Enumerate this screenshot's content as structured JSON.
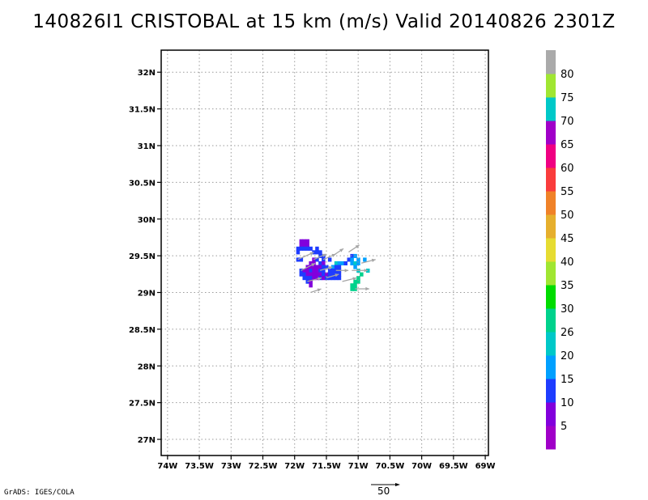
{
  "title": "140826I1 CRISTOBAL at 15 km (m/s) Valid 20140826 2301Z",
  "credit": "GrADS: IGES/COLA",
  "reference_vector_label": "50",
  "chart_data": {
    "type": "heatmap",
    "title": "140826I1 CRISTOBAL at 15 km (m/s) Valid 20140826 2301Z",
    "xlabel": "",
    "ylabel": "",
    "xlim": [
      -74.1,
      -68.95
    ],
    "ylim": [
      26.78,
      32.3
    ],
    "grid": true,
    "x_ticks": [
      {
        "value": -74.0,
        "label": "74W"
      },
      {
        "value": -73.5,
        "label": "73.5W"
      },
      {
        "value": -73.0,
        "label": "73W"
      },
      {
        "value": -72.5,
        "label": "72.5W"
      },
      {
        "value": -72.0,
        "label": "72W"
      },
      {
        "value": -71.5,
        "label": "71.5W"
      },
      {
        "value": -71.0,
        "label": "71W"
      },
      {
        "value": -70.5,
        "label": "70.5W"
      },
      {
        "value": -70.0,
        "label": "70W"
      },
      {
        "value": -69.5,
        "label": "69.5W"
      },
      {
        "value": -69.0,
        "label": "69W"
      }
    ],
    "y_ticks": [
      {
        "value": 27.0,
        "label": "27N"
      },
      {
        "value": 27.5,
        "label": "27.5N"
      },
      {
        "value": 28.0,
        "label": "28N"
      },
      {
        "value": 28.5,
        "label": "28.5N"
      },
      {
        "value": 29.0,
        "label": "29N"
      },
      {
        "value": 29.5,
        "label": "29.5N"
      },
      {
        "value": 30.0,
        "label": "30N"
      },
      {
        "value": 30.5,
        "label": "30.5N"
      },
      {
        "value": 31.0,
        "label": "31N"
      },
      {
        "value": 31.5,
        "label": "31.5N"
      },
      {
        "value": 32.0,
        "label": "32N"
      }
    ],
    "colorbar": {
      "labels": [
        "5",
        "10",
        "15",
        "20",
        "26",
        "30",
        "35",
        "40",
        "45",
        "50",
        "55",
        "60",
        "65",
        "70",
        "75",
        "80"
      ],
      "colors": [
        "#a000c8",
        "#8200dc",
        "#1e3cff",
        "#00a0ff",
        "#00c8c8",
        "#00d28c",
        "#00dc00",
        "#a0e632",
        "#e6dc32",
        "#e6af2d",
        "#f08228",
        "#fa3c3c",
        "#f00082",
        "#a000c8",
        "#00c8c8",
        "#a0e632",
        "#aaaaaa"
      ]
    },
    "cells": [
      {
        "lon": -71.9,
        "lat": 29.7,
        "speed": 5
      },
      {
        "lon": -71.85,
        "lat": 29.7,
        "speed": 5
      },
      {
        "lon": -71.8,
        "lat": 29.7,
        "speed": 5
      },
      {
        "lon": -71.9,
        "lat": 29.65,
        "speed": 5
      },
      {
        "lon": -71.85,
        "lat": 29.65,
        "speed": 5
      },
      {
        "lon": -71.8,
        "lat": 29.65,
        "speed": 5
      },
      {
        "lon": -71.95,
        "lat": 29.6,
        "speed": 10
      },
      {
        "lon": -71.9,
        "lat": 29.6,
        "speed": 10
      },
      {
        "lon": -71.85,
        "lat": 29.6,
        "speed": 10
      },
      {
        "lon": -71.8,
        "lat": 29.6,
        "speed": 10
      },
      {
        "lon": -71.75,
        "lat": 29.6,
        "speed": 10
      },
      {
        "lon": -71.65,
        "lat": 29.6,
        "speed": 10
      },
      {
        "lon": -71.95,
        "lat": 29.55,
        "speed": 10
      },
      {
        "lon": -71.7,
        "lat": 29.55,
        "speed": 10
      },
      {
        "lon": -71.65,
        "lat": 29.55,
        "speed": 10
      },
      {
        "lon": -71.6,
        "lat": 29.55,
        "speed": 10
      },
      {
        "lon": -71.6,
        "lat": 29.5,
        "speed": 10
      },
      {
        "lon": -71.55,
        "lat": 29.5,
        "speed": 10
      },
      {
        "lon": -71.1,
        "lat": 29.5,
        "speed": 10
      },
      {
        "lon": -71.05,
        "lat": 29.5,
        "speed": 15
      },
      {
        "lon": -70.9,
        "lat": 29.45,
        "speed": 15
      },
      {
        "lon": -71.95,
        "lat": 29.45,
        "speed": 10
      },
      {
        "lon": -71.9,
        "lat": 29.45,
        "speed": 10
      },
      {
        "lon": -71.7,
        "lat": 29.45,
        "speed": 5
      },
      {
        "lon": -71.65,
        "lat": 29.45,
        "speed": 10
      },
      {
        "lon": -71.55,
        "lat": 29.45,
        "speed": 10
      },
      {
        "lon": -71.45,
        "lat": 29.45,
        "speed": 10
      },
      {
        "lon": -71.15,
        "lat": 29.45,
        "speed": 10
      },
      {
        "lon": -71.1,
        "lat": 29.45,
        "speed": 15
      },
      {
        "lon": -71.0,
        "lat": 29.45,
        "speed": 15
      },
      {
        "lon": -71.75,
        "lat": 29.4,
        "speed": 5
      },
      {
        "lon": -71.7,
        "lat": 29.4,
        "speed": 5
      },
      {
        "lon": -71.6,
        "lat": 29.4,
        "speed": 10
      },
      {
        "lon": -71.55,
        "lat": 29.4,
        "speed": 5
      },
      {
        "lon": -71.35,
        "lat": 29.4,
        "speed": 20
      },
      {
        "lon": -71.3,
        "lat": 29.4,
        "speed": 15
      },
      {
        "lon": -71.25,
        "lat": 29.4,
        "speed": 15
      },
      {
        "lon": -71.2,
        "lat": 29.4,
        "speed": 10
      },
      {
        "lon": -71.1,
        "lat": 29.4,
        "speed": 15
      },
      {
        "lon": -71.05,
        "lat": 29.4,
        "speed": 20
      },
      {
        "lon": -71.0,
        "lat": 29.4,
        "speed": 15
      },
      {
        "lon": -71.8,
        "lat": 29.35,
        "speed": 5
      },
      {
        "lon": -71.75,
        "lat": 29.35,
        "speed": 5
      },
      {
        "lon": -71.7,
        "lat": 29.35,
        "speed": 5
      },
      {
        "lon": -71.65,
        "lat": 29.35,
        "speed": 5
      },
      {
        "lon": -71.6,
        "lat": 29.35,
        "speed": 5
      },
      {
        "lon": -71.55,
        "lat": 29.35,
        "speed": 10
      },
      {
        "lon": -71.5,
        "lat": 29.35,
        "speed": 10
      },
      {
        "lon": -71.4,
        "lat": 29.35,
        "speed": 15
      },
      {
        "lon": -71.35,
        "lat": 29.35,
        "speed": 10
      },
      {
        "lon": -71.3,
        "lat": 29.35,
        "speed": 10
      },
      {
        "lon": -71.05,
        "lat": 29.35,
        "speed": 15
      },
      {
        "lon": -71.9,
        "lat": 29.3,
        "speed": 10
      },
      {
        "lon": -71.85,
        "lat": 29.3,
        "speed": 5
      },
      {
        "lon": -71.8,
        "lat": 29.3,
        "speed": 5
      },
      {
        "lon": -71.75,
        "lat": 29.3,
        "speed": 10
      },
      {
        "lon": -71.7,
        "lat": 29.3,
        "speed": 5
      },
      {
        "lon": -71.65,
        "lat": 29.3,
        "speed": 5
      },
      {
        "lon": -71.6,
        "lat": 29.3,
        "speed": 10
      },
      {
        "lon": -71.55,
        "lat": 29.3,
        "speed": 10
      },
      {
        "lon": -71.45,
        "lat": 29.3,
        "speed": 10
      },
      {
        "lon": -71.4,
        "lat": 29.3,
        "speed": 10
      },
      {
        "lon": -71.35,
        "lat": 29.3,
        "speed": 10
      },
      {
        "lon": -71.3,
        "lat": 29.3,
        "speed": 10
      },
      {
        "lon": -71.0,
        "lat": 29.3,
        "speed": 20
      },
      {
        "lon": -70.85,
        "lat": 29.3,
        "speed": 20
      },
      {
        "lon": -71.9,
        "lat": 29.25,
        "speed": 10
      },
      {
        "lon": -71.85,
        "lat": 29.25,
        "speed": 10
      },
      {
        "lon": -71.8,
        "lat": 29.25,
        "speed": 5
      },
      {
        "lon": -71.75,
        "lat": 29.25,
        "speed": 5
      },
      {
        "lon": -71.7,
        "lat": 29.25,
        "speed": 5
      },
      {
        "lon": -71.65,
        "lat": 29.25,
        "speed": 5
      },
      {
        "lon": -71.6,
        "lat": 29.25,
        "speed": 5
      },
      {
        "lon": -71.55,
        "lat": 29.25,
        "speed": 10
      },
      {
        "lon": -71.5,
        "lat": 29.25,
        "speed": 5
      },
      {
        "lon": -71.45,
        "lat": 29.25,
        "speed": 10
      },
      {
        "lon": -71.4,
        "lat": 29.25,
        "speed": 10
      },
      {
        "lon": -71.35,
        "lat": 29.25,
        "speed": 10
      },
      {
        "lon": -71.3,
        "lat": 29.25,
        "speed": 10
      },
      {
        "lon": -70.95,
        "lat": 29.25,
        "speed": 26
      },
      {
        "lon": -71.85,
        "lat": 29.2,
        "speed": 10
      },
      {
        "lon": -71.8,
        "lat": 29.2,
        "speed": 10
      },
      {
        "lon": -71.75,
        "lat": 29.2,
        "speed": 10
      },
      {
        "lon": -71.7,
        "lat": 29.2,
        "speed": 5
      },
      {
        "lon": -71.65,
        "lat": 29.2,
        "speed": 5
      },
      {
        "lon": -71.6,
        "lat": 29.2,
        "speed": 10
      },
      {
        "lon": -71.55,
        "lat": 29.2,
        "speed": 5
      },
      {
        "lon": -71.5,
        "lat": 29.2,
        "speed": 10
      },
      {
        "lon": -71.45,
        "lat": 29.2,
        "speed": 10
      },
      {
        "lon": -71.4,
        "lat": 29.2,
        "speed": 10
      },
      {
        "lon": -71.35,
        "lat": 29.2,
        "speed": 10
      },
      {
        "lon": -71.3,
        "lat": 29.2,
        "speed": 10
      },
      {
        "lon": -71.0,
        "lat": 29.2,
        "speed": 26
      },
      {
        "lon": -71.8,
        "lat": 29.15,
        "speed": 10
      },
      {
        "lon": -71.75,
        "lat": 29.15,
        "speed": 5
      },
      {
        "lon": -71.05,
        "lat": 29.15,
        "speed": 26
      },
      {
        "lon": -71.0,
        "lat": 29.15,
        "speed": 26
      },
      {
        "lon": -71.75,
        "lat": 29.1,
        "speed": 5
      },
      {
        "lon": -71.1,
        "lat": 29.1,
        "speed": 26
      },
      {
        "lon": -71.05,
        "lat": 29.1,
        "speed": 26
      },
      {
        "lon": -71.1,
        "lat": 29.05,
        "speed": 26
      },
      {
        "lon": -71.05,
        "lat": 29.05,
        "speed": 26
      }
    ],
    "vectors": [
      {
        "lon": -71.95,
        "lat": 29.45,
        "u": 9,
        "v": 4
      },
      {
        "lon": -71.7,
        "lat": 29.45,
        "u": 7,
        "v": 3
      },
      {
        "lon": -71.4,
        "lat": 29.5,
        "u": 6,
        "v": 4
      },
      {
        "lon": -71.15,
        "lat": 29.55,
        "u": 6,
        "v": 4
      },
      {
        "lon": -70.95,
        "lat": 29.4,
        "u": 8,
        "v": 2
      },
      {
        "lon": -71.9,
        "lat": 29.3,
        "u": 8,
        "v": 4
      },
      {
        "lon": -71.6,
        "lat": 29.3,
        "u": 7,
        "v": 2
      },
      {
        "lon": -71.35,
        "lat": 29.3,
        "u": 7,
        "v": 0
      },
      {
        "lon": -71.1,
        "lat": 29.3,
        "u": 9,
        "v": 0
      },
      {
        "lon": -71.8,
        "lat": 29.15,
        "u": 8,
        "v": 2
      },
      {
        "lon": -71.5,
        "lat": 29.2,
        "u": 7,
        "v": 2
      },
      {
        "lon": -71.05,
        "lat": 29.05,
        "u": 8,
        "v": 0
      },
      {
        "lon": -71.25,
        "lat": 29.15,
        "u": 8,
        "v": 2
      },
      {
        "lon": -71.75,
        "lat": 29.0,
        "u": 6,
        "v": 2
      },
      {
        "lon": -71.55,
        "lat": 29.45,
        "u": 7,
        "v": 3
      }
    ]
  }
}
